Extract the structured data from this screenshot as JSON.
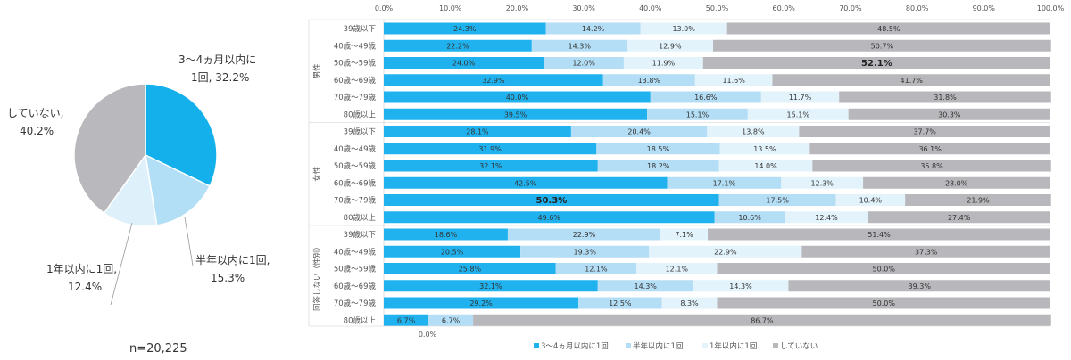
{
  "colors": {
    "series1": "#20b2ee",
    "series2": "#b4def5",
    "series3": "#e3f3fb",
    "series4": "#b8b7bb",
    "text": "#333333"
  },
  "pie": {
    "n_label": "n=20,225",
    "slices": [
      {
        "name": "3〜4ヵ月以内に1回",
        "line1": "3〜4ヵ月以内に",
        "line2": "1回, 32.2%",
        "value": 32.2,
        "color": "#13b0ec"
      },
      {
        "name": "半年以内に1回",
        "line1": "半年以内に1回,",
        "line2": "15.3%",
        "value": 15.3,
        "color": "#b2dff6"
      },
      {
        "name": "1年以内に1回",
        "line1": "1年以内に1回,",
        "line2": "12.4%",
        "value": 12.4,
        "color": "#def1fb"
      },
      {
        "name": "していない",
        "line1": "していない,",
        "line2": "40.2%",
        "value": 40.2,
        "color": "#b9b8bc"
      }
    ]
  },
  "chart_data": {
    "type": "bar",
    "stacked": true,
    "orientation": "horizontal",
    "x_ticks": [
      "0.0%",
      "10.0%",
      "20.0%",
      "30.0%",
      "40.0%",
      "50.0%",
      "60.0%",
      "70.0%",
      "80.0%",
      "90.0%",
      "100.0%"
    ],
    "xlim": [
      0,
      100
    ],
    "extra_tick_label": "0.0%",
    "series_names": [
      "3〜4ヵ月以内に1回",
      "半年以内に1回",
      "1年以内に1回",
      "していない"
    ],
    "legend": [
      "3〜4ヵ月以内に1回",
      "半年以内に1回",
      "1年以内に1回",
      "していない"
    ],
    "legend_position": "bottom",
    "groups": [
      {
        "name": "男性",
        "rows": [
          {
            "label": "39歳以下",
            "values": [
              24.3,
              14.2,
              13.0,
              48.5
            ],
            "texts": [
              "24.3%",
              "14.2%",
              "13.0%",
              "48.5%"
            ]
          },
          {
            "label": "40歳〜49歳",
            "values": [
              22.2,
              14.3,
              12.9,
              50.7
            ],
            "texts": [
              "22.2%",
              "14.3%",
              "12.9%",
              "50.7%"
            ]
          },
          {
            "label": "50歳〜59歳",
            "values": [
              24.0,
              12.0,
              11.9,
              52.1
            ],
            "texts": [
              "24.0%",
              "12.0%",
              "11.9%",
              "52.1%"
            ],
            "bold": [
              false,
              false,
              false,
              true
            ]
          },
          {
            "label": "60歳〜69歳",
            "values": [
              32.9,
              13.8,
              11.6,
              41.7
            ],
            "texts": [
              "32.9%",
              "13.8%",
              "11.6%",
              "41.7%"
            ]
          },
          {
            "label": "70歳〜79歳",
            "values": [
              40.0,
              16.6,
              11.7,
              31.8
            ],
            "texts": [
              "40.0%",
              "16.6%",
              "11.7%",
              "31.8%"
            ]
          },
          {
            "label": "80歳以上",
            "values": [
              39.5,
              15.1,
              15.1,
              30.3
            ],
            "texts": [
              "39.5%",
              "15.1%",
              "15.1%",
              "30.3%"
            ]
          }
        ]
      },
      {
        "name": "女性",
        "rows": [
          {
            "label": "39歳以下",
            "values": [
              28.1,
              20.4,
              13.8,
              37.7
            ],
            "texts": [
              "28.1%",
              "20.4%",
              "13.8%",
              "37.7%"
            ]
          },
          {
            "label": "40歳〜49歳",
            "values": [
              31.9,
              18.5,
              13.5,
              36.1
            ],
            "texts": [
              "31.9%",
              "18.5%",
              "13.5%",
              "36.1%"
            ]
          },
          {
            "label": "50歳〜59歳",
            "values": [
              32.1,
              18.2,
              14.0,
              35.8
            ],
            "texts": [
              "32.1%",
              "18.2%",
              "14.0%",
              "35.8%"
            ]
          },
          {
            "label": "60歳〜69歳",
            "values": [
              42.5,
              17.1,
              12.3,
              28.0
            ],
            "texts": [
              "42.5%",
              "17.1%",
              "12.3%",
              "28.0%"
            ]
          },
          {
            "label": "70歳〜79歳",
            "values": [
              50.3,
              17.5,
              10.4,
              21.9
            ],
            "texts": [
              "50.3%",
              "17.5%",
              "10.4%",
              "21.9%"
            ],
            "bold": [
              true,
              false,
              false,
              false
            ]
          },
          {
            "label": "80歳以上",
            "values": [
              49.6,
              10.6,
              12.4,
              27.4
            ],
            "texts": [
              "49.6%",
              "10.6%",
              "12.4%",
              "27.4%"
            ]
          }
        ]
      },
      {
        "name": "回答しない（性別）",
        "rows": [
          {
            "label": "39歳以下",
            "values": [
              18.6,
              22.9,
              7.1,
              51.4
            ],
            "texts": [
              "18.6%",
              "22.9%",
              "7.1%",
              "51.4%"
            ]
          },
          {
            "label": "40歳〜49歳",
            "values": [
              20.5,
              19.3,
              22.9,
              37.3
            ],
            "texts": [
              "20.5%",
              "19.3%",
              "22.9%",
              "37.3%"
            ]
          },
          {
            "label": "50歳〜59歳",
            "values": [
              25.8,
              12.1,
              12.1,
              50.0
            ],
            "texts": [
              "25.8%",
              "12.1%",
              "12.1%",
              "50.0%"
            ]
          },
          {
            "label": "60歳〜69歳",
            "values": [
              32.1,
              14.3,
              14.3,
              39.3
            ],
            "texts": [
              "32.1%",
              "14.3%",
              "14.3%",
              "39.3%"
            ]
          },
          {
            "label": "70歳〜79歳",
            "values": [
              29.2,
              12.5,
              8.3,
              50.0
            ],
            "texts": [
              "29.2%",
              "12.5%",
              "8.3%",
              "50.0%"
            ]
          },
          {
            "label": "80歳以上",
            "values": [
              6.7,
              6.7,
              0.0,
              86.7
            ],
            "texts": [
              "6.7%",
              "6.7%",
              "",
              "86.7%"
            ]
          }
        ]
      }
    ]
  }
}
